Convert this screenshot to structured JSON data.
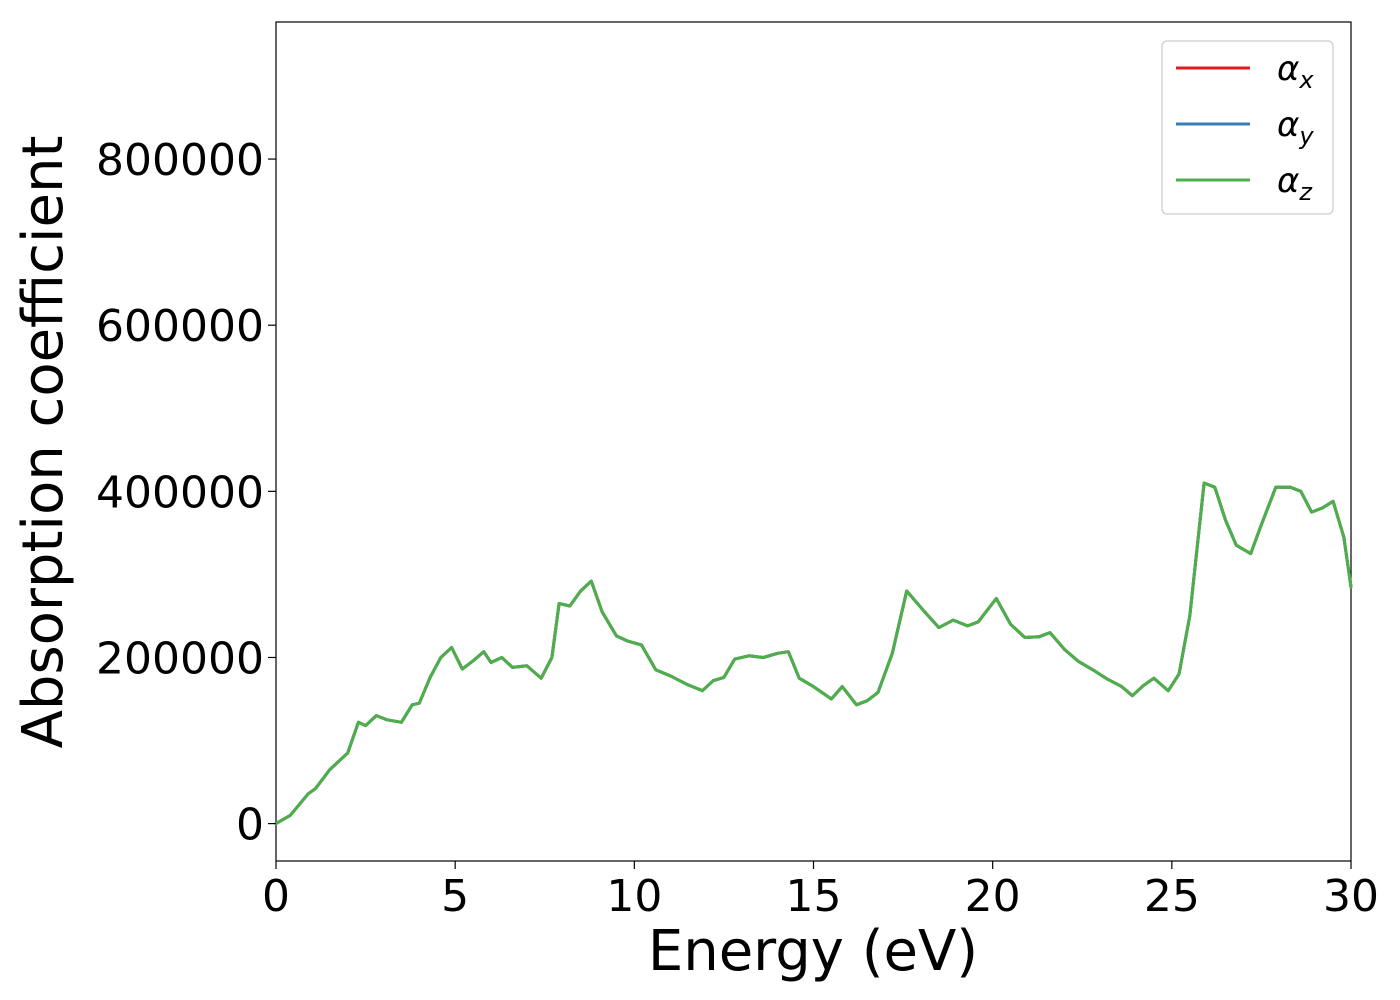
{
  "chart_data": {
    "type": "line",
    "title": "",
    "xlabel": "Energy (eV)",
    "ylabel": "Absorption coefficient",
    "xlim": [
      0,
      30
    ],
    "ylim": [
      -45000,
      965000
    ],
    "xticks": [
      0,
      5,
      10,
      15,
      20,
      25,
      30
    ],
    "xtick_labels": [
      "0",
      "5",
      "10",
      "15",
      "20",
      "25",
      "30"
    ],
    "yticks": [
      0,
      200000,
      400000,
      600000,
      800000
    ],
    "ytick_labels": [
      "0",
      "200000",
      "400000",
      "600000",
      "800000"
    ],
    "grid": false,
    "legend_position": "top-right",
    "legend": [
      {
        "symbol": "α",
        "subscript": "x",
        "color": "#e41a1c"
      },
      {
        "symbol": "α",
        "subscript": "y",
        "color": "#377eb8"
      },
      {
        "symbol": "α",
        "subscript": "z",
        "color": "#4daf4a"
      }
    ],
    "x": [
      0,
      0.4,
      0.9,
      1.1,
      1.5,
      2.0,
      2.3,
      2.5,
      2.8,
      3.1,
      3.5,
      3.8,
      4.0,
      4.3,
      4.6,
      4.9,
      5.2,
      5.5,
      5.8,
      6.0,
      6.3,
      6.6,
      7.0,
      7.4,
      7.7,
      7.9,
      8.2,
      8.5,
      8.8,
      9.1,
      9.5,
      9.8,
      10.2,
      10.6,
      11.0,
      11.5,
      11.9,
      12.2,
      12.5,
      12.8,
      13.2,
      13.6,
      14.0,
      14.3,
      14.6,
      15.0,
      15.5,
      15.8,
      16.2,
      16.5,
      16.8,
      17.2,
      17.6,
      18.1,
      18.5,
      18.9,
      19.3,
      19.6,
      20.1,
      20.5,
      20.9,
      21.3,
      21.6,
      22.0,
      22.4,
      22.8,
      23.2,
      23.6,
      23.9,
      24.2,
      24.5,
      24.9,
      25.2,
      25.5,
      25.9,
      26.2,
      26.5,
      26.8,
      27.2,
      27.5,
      27.9,
      28.3,
      28.6,
      28.9,
      29.2,
      29.5,
      29.8,
      30.0
    ],
    "series": [
      {
        "name": "α_x",
        "color": "#e41a1c",
        "values": [
          0,
          10000,
          36000,
          42000,
          65000,
          85000,
          122000,
          118000,
          130000,
          125000,
          122000,
          143000,
          145000,
          176000,
          200000,
          212000,
          186000,
          196000,
          207000,
          194000,
          200000,
          188000,
          190000,
          175000,
          200000,
          265000,
          262000,
          280000,
          292000,
          255000,
          226000,
          220000,
          215000,
          185000,
          178000,
          167000,
          160000,
          172000,
          176000,
          198000,
          202000,
          200000,
          205000,
          207000,
          175000,
          165000,
          150000,
          165000,
          143000,
          148000,
          158000,
          205000,
          280000,
          255000,
          236000,
          245000,
          238000,
          243000,
          271000,
          240000,
          224000,
          225000,
          230000,
          210000,
          195000,
          185000,
          174000,
          165000,
          154000,
          166000,
          175000,
          160000,
          180000,
          250000,
          410000,
          405000,
          365000,
          335000,
          325000,
          360000,
          405000,
          405000,
          400000,
          375000,
          380000,
          388000,
          345000,
          285000
        ]
      },
      {
        "name": "α_y",
        "color": "#377eb8",
        "values": [
          0,
          10000,
          36000,
          42000,
          65000,
          85000,
          122000,
          118000,
          130000,
          125000,
          122000,
          143000,
          145000,
          176000,
          200000,
          212000,
          186000,
          196000,
          207000,
          194000,
          200000,
          188000,
          190000,
          175000,
          200000,
          265000,
          262000,
          280000,
          292000,
          255000,
          226000,
          220000,
          215000,
          185000,
          178000,
          167000,
          160000,
          172000,
          176000,
          198000,
          202000,
          200000,
          205000,
          207000,
          175000,
          165000,
          150000,
          165000,
          143000,
          148000,
          158000,
          205000,
          280000,
          255000,
          236000,
          245000,
          238000,
          243000,
          271000,
          240000,
          224000,
          225000,
          230000,
          210000,
          195000,
          185000,
          174000,
          165000,
          154000,
          166000,
          175000,
          160000,
          180000,
          250000,
          410000,
          405000,
          365000,
          335000,
          325000,
          360000,
          405000,
          405000,
          400000,
          375000,
          380000,
          388000,
          345000,
          285000
        ]
      },
      {
        "name": "α_z",
        "color": "#4daf4a",
        "values": [
          0,
          10000,
          36000,
          42000,
          65000,
          85000,
          122000,
          118000,
          130000,
          125000,
          122000,
          143000,
          145000,
          176000,
          200000,
          212000,
          186000,
          196000,
          207000,
          194000,
          200000,
          188000,
          190000,
          175000,
          200000,
          265000,
          262000,
          280000,
          292000,
          255000,
          226000,
          220000,
          215000,
          185000,
          178000,
          167000,
          160000,
          172000,
          176000,
          198000,
          202000,
          200000,
          205000,
          207000,
          175000,
          165000,
          150000,
          165000,
          143000,
          148000,
          158000,
          205000,
          280000,
          255000,
          236000,
          245000,
          238000,
          243000,
          271000,
          240000,
          224000,
          225000,
          230000,
          210000,
          195000,
          185000,
          174000,
          165000,
          154000,
          166000,
          175000,
          160000,
          180000,
          250000,
          410000,
          405000,
          365000,
          335000,
          325000,
          360000,
          405000,
          405000,
          400000,
          375000,
          380000,
          388000,
          345000,
          285000
        ]
      }
    ]
  }
}
